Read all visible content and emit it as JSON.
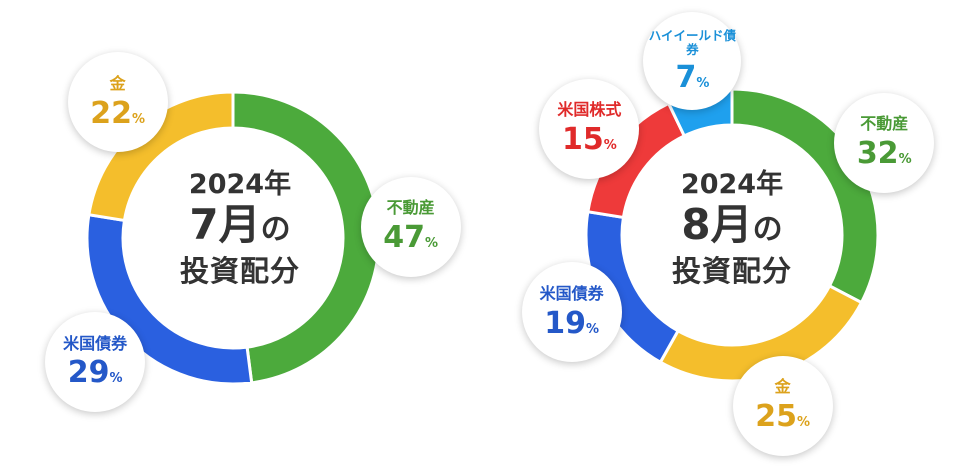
{
  "chart_data": [
    {
      "type": "pie",
      "title": {
        "year": "2024年",
        "month_num": "7月",
        "month_no": "の",
        "subtitle": "投資配分"
      },
      "percent_sign": "%",
      "slices": [
        {
          "label": "不動産",
          "value": 47,
          "color": "#4caa3c"
        },
        {
          "label": "米国債券",
          "value": 29,
          "color": "#2a60e0"
        },
        {
          "label": "金",
          "value": 22,
          "color": "#f4be2c"
        }
      ]
    },
    {
      "type": "pie",
      "title": {
        "year": "2024年",
        "month_num": "8月",
        "month_no": "の",
        "subtitle": "投資配分"
      },
      "percent_sign": "%",
      "slices": [
        {
          "label": "不動産",
          "value": 32,
          "color": "#4caa3c"
        },
        {
          "label": "金",
          "value": 25,
          "color": "#f4be2c"
        },
        {
          "label": "米国債券",
          "value": 19,
          "color": "#2a60e0"
        },
        {
          "label": "米国株式",
          "value": 15,
          "color": "#ee3a3a"
        },
        {
          "label": "ハイイールド債券",
          "value": 7,
          "color": "#1fa0ee"
        }
      ]
    }
  ],
  "label_colors": {
    "不動産": "#4a9a36",
    "金": "#dca21c",
    "米国債券": "#2458c8",
    "米国株式": "#e02a2a",
    "ハイイールド債券": "#1a90d8"
  }
}
